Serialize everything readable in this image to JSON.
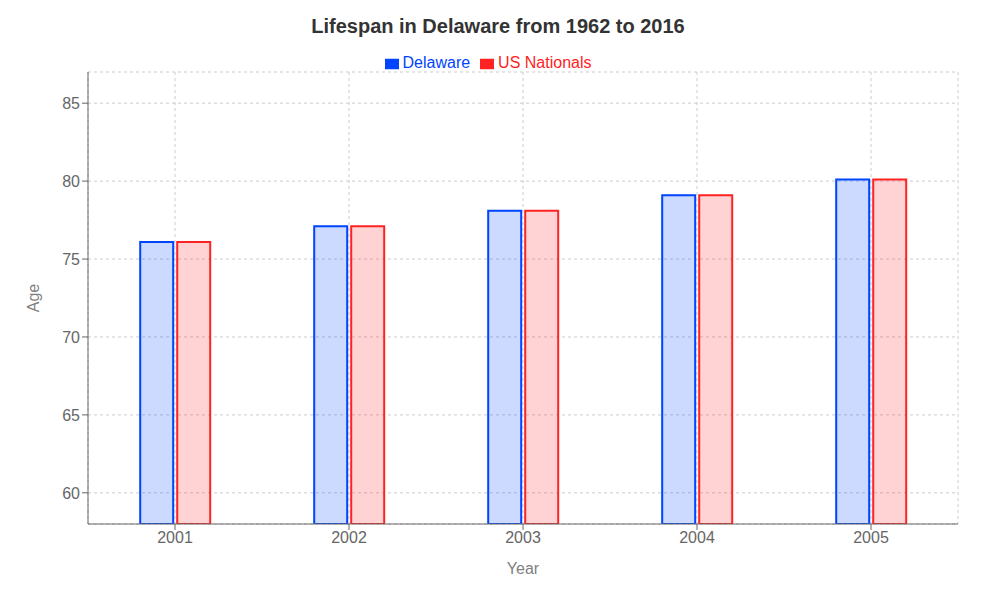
{
  "chart_data": {
    "type": "bar",
    "title": "Lifespan in Delaware from 1962 to 2016",
    "xlabel": "Year",
    "ylabel": "Age",
    "categories": [
      "2001",
      "2002",
      "2003",
      "2004",
      "2005"
    ],
    "series": [
      {
        "name": "Delaware",
        "color": "#0044ff",
        "values": [
          76.1,
          77.1,
          78.1,
          79.1,
          80.1
        ]
      },
      {
        "name": "US Nationals",
        "color": "#ff2222",
        "values": [
          76.1,
          77.1,
          78.1,
          79.1,
          80.1
        ]
      }
    ],
    "ylim": [
      58,
      87
    ],
    "yticks": [
      60,
      65,
      70,
      75,
      80,
      85
    ],
    "grid": true,
    "legend": "top"
  }
}
